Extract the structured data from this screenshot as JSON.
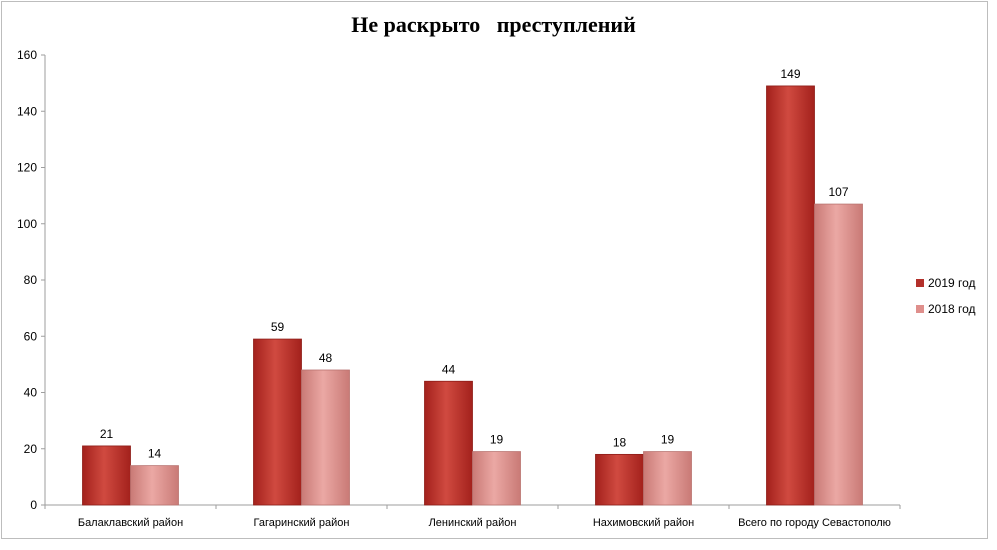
{
  "chart_data": {
    "type": "bar",
    "title": "Не раскрыто   преступлений",
    "categories": [
      "Балаклавский район",
      "Гагаринский район",
      "Ленинский район",
      "Нахимовский район",
      "Всего по городу Севастополю"
    ],
    "series": [
      {
        "name": "2019 год",
        "values": [
          21,
          59,
          44,
          18,
          149
        ],
        "color": "#c0392f"
      },
      {
        "name": "2018 год",
        "values": [
          14,
          48,
          19,
          19,
          107
        ],
        "color": "#df8f8c"
      }
    ],
    "ylim": [
      0,
      160
    ],
    "yticks": [
      0,
      20,
      40,
      60,
      80,
      100,
      120,
      140,
      160
    ],
    "grid": false,
    "legend": "right",
    "data_labels": true
  }
}
